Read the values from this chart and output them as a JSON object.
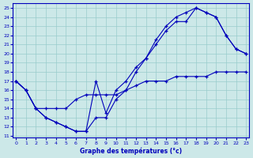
{
  "title": "Graphe des températures (°c)",
  "xlim_min": -0.3,
  "xlim_max": 23.3,
  "ylim_min": 10.8,
  "ylim_max": 25.5,
  "xticks": [
    0,
    1,
    2,
    3,
    4,
    5,
    6,
    7,
    8,
    9,
    10,
    11,
    12,
    13,
    14,
    15,
    16,
    17,
    18,
    19,
    20,
    21,
    22,
    23
  ],
  "yticks": [
    11,
    12,
    13,
    14,
    15,
    16,
    17,
    18,
    19,
    20,
    21,
    22,
    23,
    24,
    25
  ],
  "line_color": "#0000bb",
  "bg_color": "#cce8e8",
  "grid_color": "#99cccc",
  "line1_x": [
    0,
    1,
    2,
    3,
    4,
    5,
    6,
    7,
    8,
    9,
    10,
    11,
    12,
    13,
    14,
    15,
    16,
    17,
    18,
    19,
    20,
    21,
    22,
    23
  ],
  "line1_y": [
    17,
    16,
    14,
    13,
    12.5,
    12,
    11.5,
    11.5,
    13,
    13,
    15,
    16,
    18,
    19.5,
    21.5,
    23,
    24,
    24.5,
    25,
    24.5,
    24,
    22,
    20.5,
    20
  ],
  "line2_x": [
    0,
    1,
    2,
    3,
    4,
    5,
    6,
    7,
    8,
    9,
    10,
    11,
    12,
    13,
    14,
    15,
    16,
    17,
    18,
    19,
    20,
    21,
    22,
    23
  ],
  "line2_y": [
    17,
    16,
    14,
    13,
    12.5,
    12,
    11.5,
    11.5,
    17,
    13.5,
    16,
    17,
    18.5,
    19.5,
    21,
    22.5,
    23.5,
    23.5,
    25,
    24.5,
    24,
    22,
    20.5,
    20
  ],
  "line3_x": [
    0,
    1,
    2,
    3,
    4,
    5,
    6,
    7,
    8,
    9,
    10,
    11,
    12,
    13,
    14,
    15,
    16,
    17,
    18,
    19,
    20,
    21,
    22,
    23
  ],
  "line3_y": [
    17,
    16,
    14,
    14,
    14,
    14,
    15,
    15.5,
    15.5,
    15.5,
    15.5,
    16,
    16.5,
    17,
    17,
    17,
    17.5,
    17.5,
    17.5,
    17.5,
    18,
    18,
    18,
    18
  ]
}
